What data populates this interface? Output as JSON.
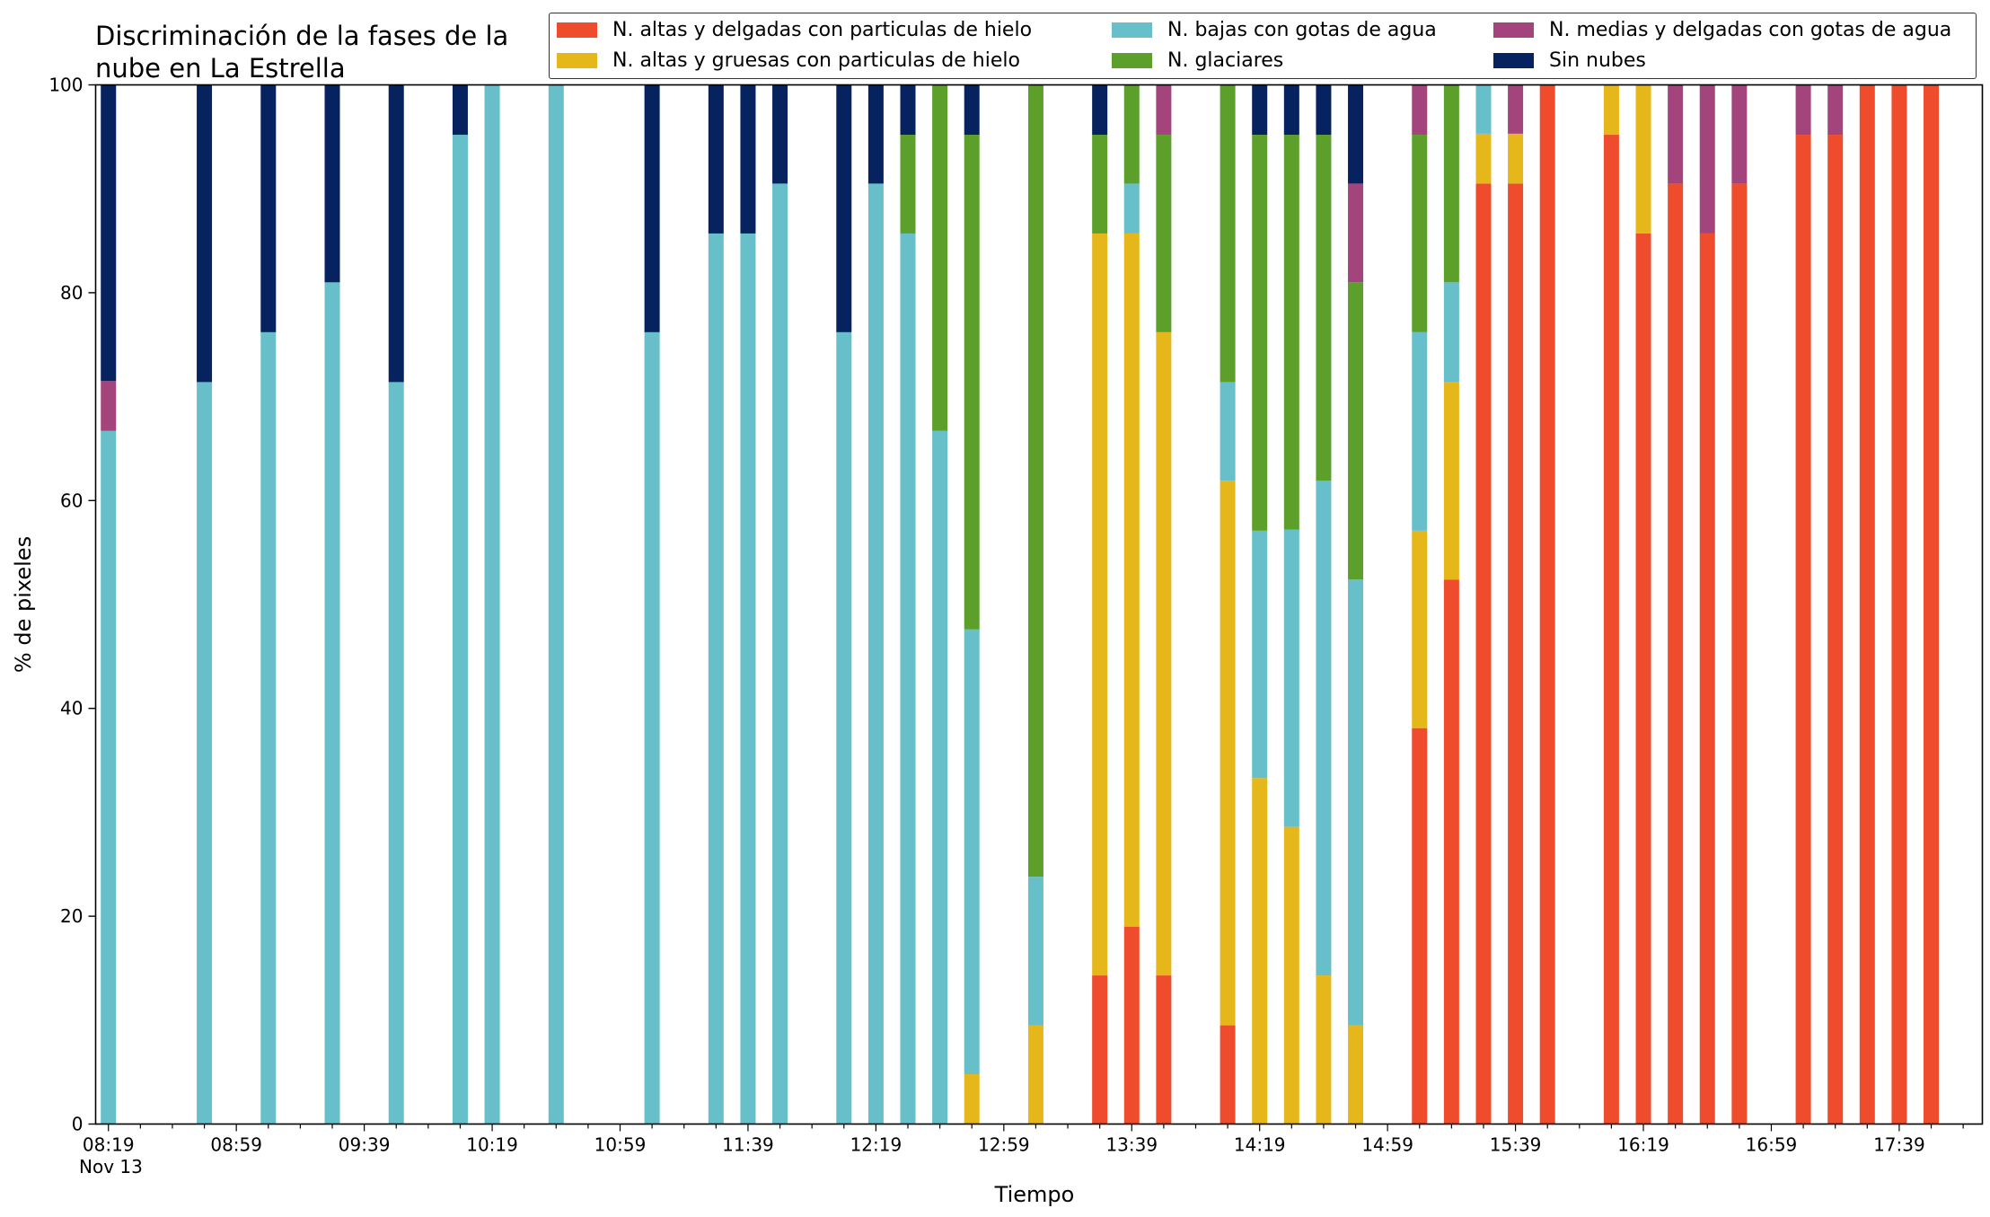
{
  "chart_data": {
    "type": "bar",
    "stacked": true,
    "title": "Discriminación de la fases de la\nnube en La Estrella",
    "xlabel": "Tiempo",
    "ylabel": "% de pixeles",
    "ylim": [
      0,
      100
    ],
    "yticks": [
      0,
      20,
      40,
      60,
      80,
      100
    ],
    "xlim": [
      "08:15",
      "18:05"
    ],
    "date": "Nov 13",
    "xtick_labels": [
      "08:19",
      "08:59",
      "09:39",
      "10:19",
      "10:59",
      "11:39",
      "12:19",
      "12:59",
      "13:39",
      "14:19",
      "14:59",
      "15:39",
      "16:19",
      "16:59",
      "17:39"
    ],
    "legend_position": "top-right",
    "grid": false,
    "series_order": [
      "alta_delgada",
      "alta_gruesa",
      "baja_agua",
      "glaciar",
      "media_delgada",
      "sin_nubes"
    ],
    "series_names": {
      "alta_delgada": "N. altas y delgadas con particulas de hielo",
      "alta_gruesa": "N. altas y gruesas con particulas de hielo",
      "baja_agua": "N. bajas con gotas de agua",
      "glaciar": "N. glaciares",
      "media_delgada": "N. medias y delgadas con gotas de agua",
      "sin_nubes": "Sin nubes"
    },
    "colors": {
      "alta_delgada": "#ee4c2c",
      "alta_gruesa": "#e6b71a",
      "baja_agua": "#67bfca",
      "glaciar": "#5c9f2b",
      "media_delgada": "#a3457c",
      "sin_nubes": "#06225f"
    },
    "bars": [
      {
        "time": "08:19",
        "alta_delgada": 0,
        "alta_gruesa": 0,
        "baja_agua": 66.7,
        "glaciar": 0,
        "media_delgada": 4.8,
        "sin_nubes": 28.5
      },
      {
        "time": "08:49",
        "alta_delgada": 0,
        "alta_gruesa": 0,
        "baja_agua": 71.4,
        "glaciar": 0,
        "media_delgada": 0,
        "sin_nubes": 28.6
      },
      {
        "time": "09:09",
        "alta_delgada": 0,
        "alta_gruesa": 0,
        "baja_agua": 76.2,
        "glaciar": 0,
        "media_delgada": 0,
        "sin_nubes": 23.8
      },
      {
        "time": "09:29",
        "alta_delgada": 0,
        "alta_gruesa": 0,
        "baja_agua": 81.0,
        "glaciar": 0,
        "media_delgada": 0,
        "sin_nubes": 19.0
      },
      {
        "time": "09:49",
        "alta_delgada": 0,
        "alta_gruesa": 0,
        "baja_agua": 71.4,
        "glaciar": 0,
        "media_delgada": 0,
        "sin_nubes": 28.6
      },
      {
        "time": "10:09",
        "alta_delgada": 0,
        "alta_gruesa": 0,
        "baja_agua": 95.2,
        "glaciar": 0,
        "media_delgada": 0,
        "sin_nubes": 4.8
      },
      {
        "time": "10:19",
        "alta_delgada": 0,
        "alta_gruesa": 0,
        "baja_agua": 100,
        "glaciar": 0,
        "media_delgada": 0,
        "sin_nubes": 0
      },
      {
        "time": "10:39",
        "alta_delgada": 0,
        "alta_gruesa": 0,
        "baja_agua": 100,
        "glaciar": 0,
        "media_delgada": 0,
        "sin_nubes": 0
      },
      {
        "time": "11:09",
        "alta_delgada": 0,
        "alta_gruesa": 0,
        "baja_agua": 76.2,
        "glaciar": 0,
        "media_delgada": 0,
        "sin_nubes": 23.8
      },
      {
        "time": "11:29",
        "alta_delgada": 0,
        "alta_gruesa": 0,
        "baja_agua": 85.7,
        "glaciar": 0,
        "media_delgada": 0,
        "sin_nubes": 14.3
      },
      {
        "time": "11:39",
        "alta_delgada": 0,
        "alta_gruesa": 0,
        "baja_agua": 85.7,
        "glaciar": 0,
        "media_delgada": 0,
        "sin_nubes": 14.3
      },
      {
        "time": "11:49",
        "alta_delgada": 0,
        "alta_gruesa": 0,
        "baja_agua": 90.5,
        "glaciar": 0,
        "media_delgada": 0,
        "sin_nubes": 9.5
      },
      {
        "time": "12:09",
        "alta_delgada": 0,
        "alta_gruesa": 0,
        "baja_agua": 76.2,
        "glaciar": 0,
        "media_delgada": 0,
        "sin_nubes": 23.8
      },
      {
        "time": "12:19",
        "alta_delgada": 0,
        "alta_gruesa": 0,
        "baja_agua": 90.5,
        "glaciar": 0,
        "media_delgada": 0,
        "sin_nubes": 9.5
      },
      {
        "time": "12:29",
        "alta_delgada": 0,
        "alta_gruesa": 0,
        "baja_agua": 85.7,
        "glaciar": 9.5,
        "media_delgada": 0,
        "sin_nubes": 4.8
      },
      {
        "time": "12:39",
        "alta_delgada": 0,
        "alta_gruesa": 0,
        "baja_agua": 66.7,
        "glaciar": 33.3,
        "media_delgada": 0,
        "sin_nubes": 0
      },
      {
        "time": "12:49",
        "alta_delgada": 0,
        "alta_gruesa": 4.8,
        "baja_agua": 42.8,
        "glaciar": 47.6,
        "media_delgada": 0,
        "sin_nubes": 4.8
      },
      {
        "time": "13:09",
        "alta_delgada": 0,
        "alta_gruesa": 9.5,
        "baja_agua": 14.3,
        "glaciar": 76.2,
        "media_delgada": 0,
        "sin_nubes": 0
      },
      {
        "time": "13:29",
        "alta_delgada": 14.3,
        "alta_gruesa": 71.4,
        "baja_agua": 0,
        "glaciar": 9.5,
        "media_delgada": 0,
        "sin_nubes": 4.8
      },
      {
        "time": "13:39",
        "alta_delgada": 19.0,
        "alta_gruesa": 66.7,
        "baja_agua": 4.8,
        "glaciar": 9.5,
        "media_delgada": 0,
        "sin_nubes": 0
      },
      {
        "time": "13:49",
        "alta_delgada": 14.3,
        "alta_gruesa": 61.9,
        "baja_agua": 0,
        "glaciar": 19.0,
        "media_delgada": 4.8,
        "sin_nubes": 0
      },
      {
        "time": "14:09",
        "alta_delgada": 9.5,
        "alta_gruesa": 52.4,
        "baja_agua": 9.5,
        "glaciar": 28.6,
        "media_delgada": 0,
        "sin_nubes": 0
      },
      {
        "time": "14:19",
        "alta_delgada": 0,
        "alta_gruesa": 33.3,
        "baja_agua": 23.8,
        "glaciar": 38.1,
        "media_delgada": 0,
        "sin_nubes": 4.8
      },
      {
        "time": "14:29",
        "alta_delgada": 0,
        "alta_gruesa": 28.6,
        "baja_agua": 28.6,
        "glaciar": 38.0,
        "media_delgada": 0,
        "sin_nubes": 4.8
      },
      {
        "time": "14:39",
        "alta_delgada": 0,
        "alta_gruesa": 14.3,
        "baja_agua": 47.6,
        "glaciar": 33.3,
        "media_delgada": 0,
        "sin_nubes": 4.8
      },
      {
        "time": "14:49",
        "alta_delgada": 0,
        "alta_gruesa": 9.5,
        "baja_agua": 42.9,
        "glaciar": 28.6,
        "media_delgada": 9.5,
        "sin_nubes": 9.5
      },
      {
        "time": "15:09",
        "alta_delgada": 38.1,
        "alta_gruesa": 19.0,
        "baja_agua": 19.1,
        "glaciar": 19.0,
        "media_delgada": 4.8,
        "sin_nubes": 0
      },
      {
        "time": "15:19",
        "alta_delgada": 52.4,
        "alta_gruesa": 19.0,
        "baja_agua": 9.6,
        "glaciar": 19.0,
        "media_delgada": 0,
        "sin_nubes": 0
      },
      {
        "time": "15:29",
        "alta_delgada": 90.5,
        "alta_gruesa": 4.8,
        "baja_agua": 4.7,
        "glaciar": 0,
        "media_delgada": 0,
        "sin_nubes": 0
      },
      {
        "time": "15:39",
        "alta_delgada": 90.5,
        "alta_gruesa": 4.8,
        "baja_agua": 0,
        "glaciar": 0,
        "media_delgada": 4.7,
        "sin_nubes": 0
      },
      {
        "time": "15:49",
        "alta_delgada": 100,
        "alta_gruesa": 0,
        "baja_agua": 0,
        "glaciar": 0,
        "media_delgada": 0,
        "sin_nubes": 0
      },
      {
        "time": "16:09",
        "alta_delgada": 95.2,
        "alta_gruesa": 4.8,
        "baja_agua": 0,
        "glaciar": 0,
        "media_delgada": 0,
        "sin_nubes": 0
      },
      {
        "time": "16:19",
        "alta_delgada": 85.7,
        "alta_gruesa": 14.3,
        "baja_agua": 0,
        "glaciar": 0,
        "media_delgada": 0,
        "sin_nubes": 0
      },
      {
        "time": "16:29",
        "alta_delgada": 90.5,
        "alta_gruesa": 0,
        "baja_agua": 0,
        "glaciar": 0,
        "media_delgada": 9.5,
        "sin_nubes": 0
      },
      {
        "time": "16:39",
        "alta_delgada": 85.7,
        "alta_gruesa": 0,
        "baja_agua": 0,
        "glaciar": 0,
        "media_delgada": 14.3,
        "sin_nubes": 0
      },
      {
        "time": "16:49",
        "alta_delgada": 90.5,
        "alta_gruesa": 0,
        "baja_agua": 0,
        "glaciar": 0,
        "media_delgada": 9.5,
        "sin_nubes": 0
      },
      {
        "time": "17:09",
        "alta_delgada": 95.2,
        "alta_gruesa": 0,
        "baja_agua": 0,
        "glaciar": 0,
        "media_delgada": 4.8,
        "sin_nubes": 0
      },
      {
        "time": "17:19",
        "alta_delgada": 95.2,
        "alta_gruesa": 0,
        "baja_agua": 0,
        "glaciar": 0,
        "media_delgada": 4.8,
        "sin_nubes": 0
      },
      {
        "time": "17:29",
        "alta_delgada": 100,
        "alta_gruesa": 0,
        "baja_agua": 0,
        "glaciar": 0,
        "media_delgada": 0,
        "sin_nubes": 0
      },
      {
        "time": "17:39",
        "alta_delgada": 100,
        "alta_gruesa": 0,
        "baja_agua": 0,
        "glaciar": 0,
        "media_delgada": 0,
        "sin_nubes": 0
      },
      {
        "time": "17:49",
        "alta_delgada": 100,
        "alta_gruesa": 0,
        "baja_agua": 0,
        "glaciar": 0,
        "media_delgada": 0,
        "sin_nubes": 0
      }
    ]
  }
}
